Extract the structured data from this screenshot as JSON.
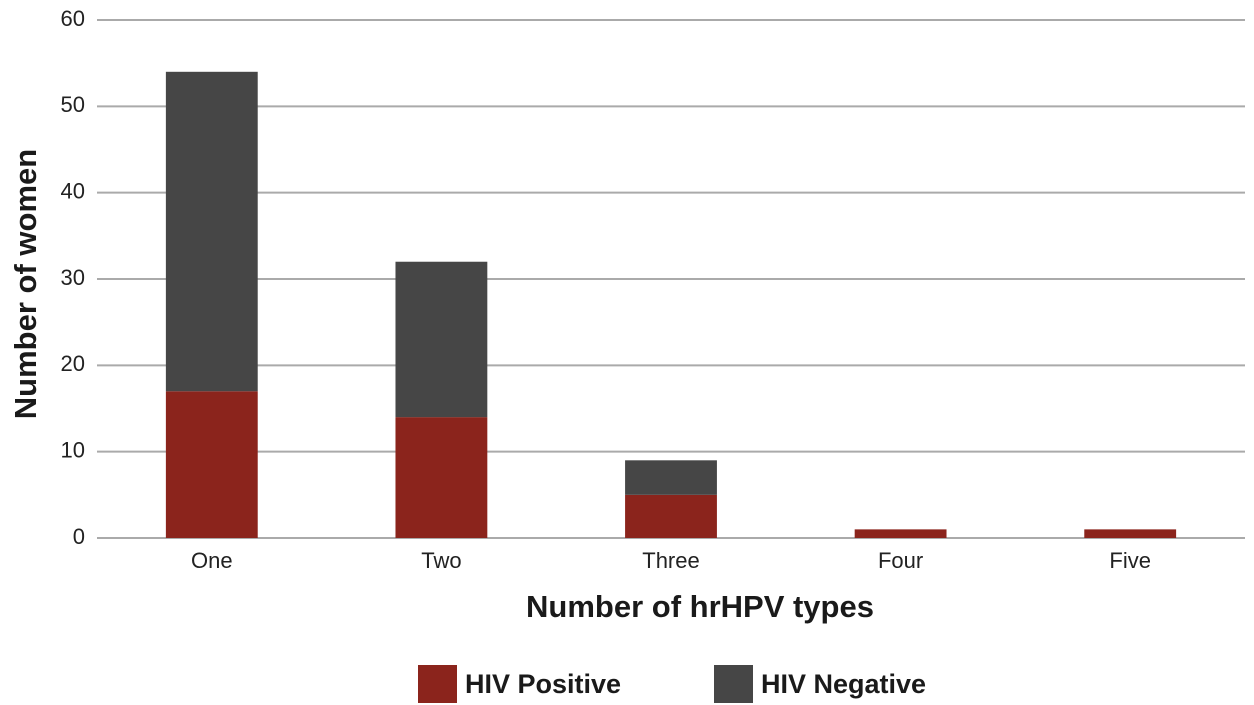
{
  "chart_data": {
    "type": "stacked_bar",
    "x_label": "Number of hrHPV types",
    "y_label": "Number of women",
    "categories": [
      "One",
      "Two",
      "Three",
      "Four",
      "Five"
    ],
    "series": [
      {
        "name": "HIV Positive",
        "color": "#8b241c",
        "values": [
          17,
          14,
          5,
          1,
          1
        ]
      },
      {
        "name": "HIV Negative",
        "color": "#464646",
        "values": [
          37,
          18,
          4,
          0,
          0
        ]
      }
    ],
    "ylim": [
      0,
      60
    ],
    "yticks": [
      0,
      10,
      20,
      30,
      40,
      50,
      60
    ],
    "grid": true,
    "legend": "bottom"
  }
}
